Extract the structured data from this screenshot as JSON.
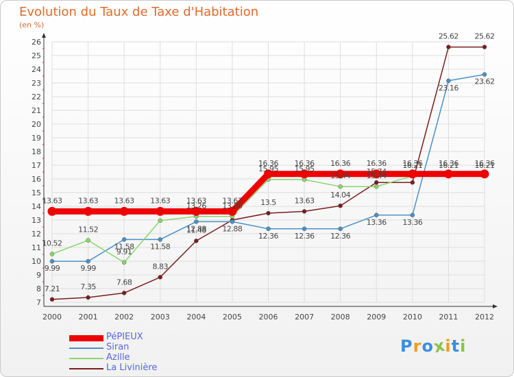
{
  "chart_data": {
    "type": "line",
    "title": "Evolution du Taux de Taxe d'Habitation",
    "unit_label": "(en %)",
    "x": [
      "2000",
      "2001",
      "2002",
      "2003",
      "2004",
      "2005",
      "2006",
      "2007",
      "2008",
      "2009",
      "2010",
      "2011",
      "2012"
    ],
    "ylim": [
      7,
      26
    ],
    "y_ticks": [
      "7",
      "8",
      "9",
      "10",
      "11",
      "12",
      "13",
      "14",
      "15",
      "16",
      "17",
      "18",
      "19",
      "20",
      "21",
      "22",
      "23",
      "24",
      "25",
      "26"
    ],
    "grid": true,
    "legend_position": "bottom-left",
    "series": [
      {
        "name": "PéPIEUX",
        "color": "#ee0000",
        "values": [
          13.63,
          13.63,
          13.63,
          13.63,
          13.63,
          13.63,
          16.36,
          16.36,
          16.36,
          16.36,
          16.36,
          16.36,
          16.36
        ],
        "labels": [
          "13.63",
          "13.63",
          "13.63",
          "13.63",
          "13.63",
          "13.63",
          "16.36",
          "16.36",
          "16.36",
          "16.36",
          "16.36",
          "16.36",
          "16.36"
        ]
      },
      {
        "name": "Siran",
        "color": "#4a90c8",
        "values": [
          9.99,
          9.99,
          11.58,
          11.58,
          12.88,
          12.88,
          12.36,
          12.36,
          12.36,
          13.36,
          13.36,
          23.16,
          23.62
        ],
        "labels": [
          "9.99",
          "9.99",
          "11.58",
          "11.58",
          "12.88",
          "12.88",
          "12.36",
          "12.36",
          "12.36",
          "13.36",
          "13.36",
          "23.16",
          "23.62"
        ]
      },
      {
        "name": "Azille",
        "color": "#88d66c",
        "values": [
          10.52,
          11.52,
          9.91,
          12.96,
          13.26,
          13.26,
          15.95,
          15.95,
          15.44,
          15.44,
          16.21,
          16.21,
          16.21
        ],
        "labels": [
          "10.52",
          "11.52",
          "9.91",
          "",
          "13.26",
          "13.26",
          "15.95",
          "15.95",
          "15.44",
          "15.44",
          "16.21",
          "16.21",
          "16.21"
        ]
      },
      {
        "name": "La Livinière",
        "color": "#7a1c1c",
        "values": [
          7.21,
          7.35,
          7.68,
          8.83,
          11.48,
          13.0,
          13.5,
          13.63,
          14.04,
          15.74,
          15.74,
          25.62,
          25.62
        ],
        "labels": [
          "7.21",
          "7.35",
          "7.68",
          "8.83",
          "11.48",
          "",
          "13.5",
          "13.63",
          "14.04",
          "15.74",
          "",
          "25.62",
          "25.62"
        ]
      }
    ]
  },
  "logo": {
    "text": "Proxiti",
    "letters": [
      "P",
      "r",
      "o",
      "x",
      "i",
      "t",
      "i"
    ],
    "colors": [
      "#3c8de0",
      "#f39a1e",
      "#3c8de0",
      "#8bc34a",
      "#f39a1e",
      "#3c8de0",
      "#8bc34a"
    ]
  }
}
